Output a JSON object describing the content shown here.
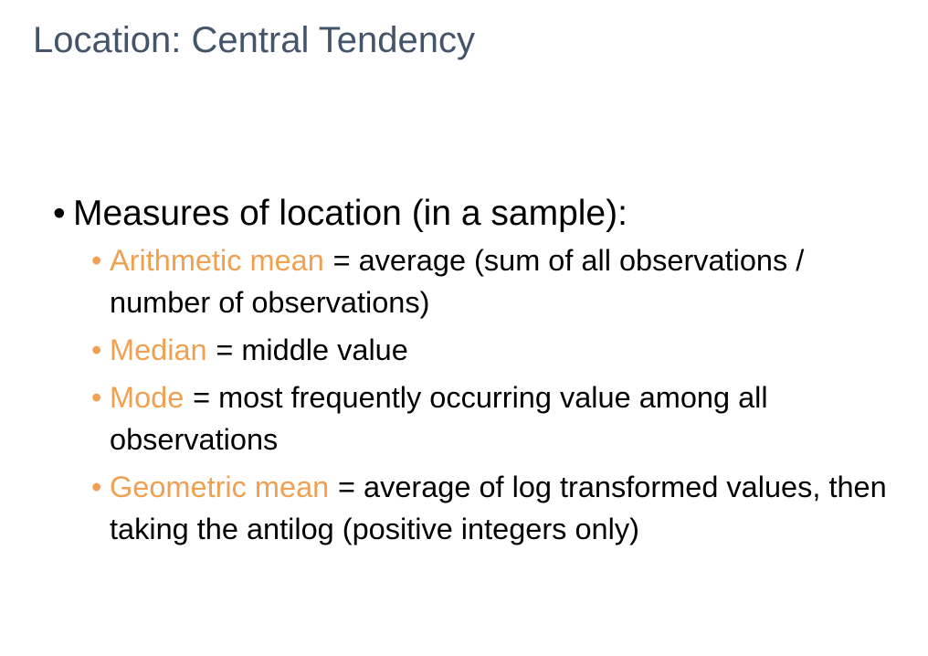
{
  "title": "Location: Central Tendency",
  "bullets": [
    {
      "text": "Measures of location (in a sample):",
      "sub": [
        {
          "term": "Arithmetic mean",
          "definition": "= average (sum of all observations / number of observations)"
        },
        {
          "term": "Median",
          "definition": "= middle value"
        },
        {
          "term": "Mode",
          "definition": "= most frequently occurring value among all observations"
        },
        {
          "term": "Geometric mean",
          "definition": "= average of log transformed values, then taking the antilog (positive integers only)"
        }
      ]
    }
  ]
}
